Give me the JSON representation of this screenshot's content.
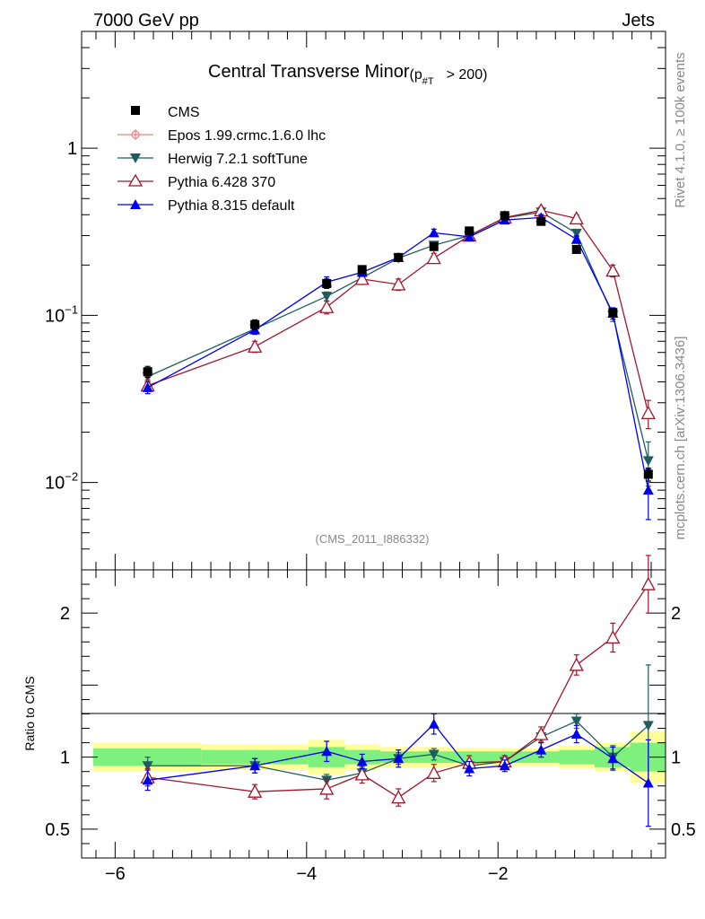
{
  "header": {
    "energy_label": "7000 GeV pp",
    "process_label": "Jets",
    "side_label_top": "Rivet 4.1.0, ≥ 100k events",
    "side_label_bottom": "mcplots.cern.ch [arXiv:1306.3436]",
    "analysis_id": "(CMS_2011_I886332)"
  },
  "chart_data": [
    {
      "type": "line",
      "role": "main",
      "title_main": "Central Transverse Minor",
      "title_sub": "(p",
      "title_sub_index": "#T",
      "title_tail": "> 200)",
      "yscale": "log",
      "xlim": [
        -6.35,
        -0.25
      ],
      "ylim": [
        0.003,
        5.0
      ],
      "ytick_labels": [
        {
          "value": 1,
          "base": "1",
          "exp": ""
        },
        {
          "value": 0.1,
          "base": "10",
          "exp": "−1"
        },
        {
          "value": 0.01,
          "base": "10",
          "exp": "−2"
        }
      ],
      "legend_position": "top-left",
      "series": [
        {
          "name": "CMS",
          "color": "#000000",
          "marker": "square",
          "x": [
            -5.66,
            -4.54,
            -3.79,
            -3.42,
            -3.04,
            -2.67,
            -2.3,
            -1.93,
            -1.55,
            -1.18,
            -0.8,
            -0.43
          ],
          "y": [
            0.046,
            0.088,
            0.155,
            0.188,
            0.222,
            0.258,
            0.32,
            0.395,
            0.365,
            0.248,
            0.104,
            0.0112
          ],
          "err": [
            0.0035,
            0.006,
            0.01,
            0.01,
            0.01,
            0.012,
            0.014,
            0.016,
            0.014,
            0.012,
            0.006,
            0.001
          ]
        },
        {
          "name": "Epos 1.99.crmc.1.6.0 lhc",
          "color": "#f08080",
          "marker": "plus-circle",
          "x": [],
          "y": [],
          "err": []
        },
        {
          "name": "Herwig 7.2.1 softTune",
          "color": "#1f5c5c",
          "marker": "triangle-down",
          "x": [
            -5.66,
            -4.54,
            -3.79,
            -3.42,
            -3.04,
            -2.67,
            -2.3,
            -1.93,
            -1.55,
            -1.18,
            -0.8,
            -0.43
          ],
          "y": [
            0.043,
            0.083,
            0.13,
            0.168,
            0.22,
            0.263,
            0.3,
            0.382,
            0.415,
            0.31,
            0.1,
            0.0135
          ],
          "err": [
            0.003,
            0.005,
            0.008,
            0.009,
            0.01,
            0.012,
            0.013,
            0.015,
            0.016,
            0.014,
            0.008,
            0.004
          ]
        },
        {
          "name": "Pythia 6.428 370",
          "color": "#a0162b",
          "marker": "triangle-open",
          "x": [
            -5.66,
            -4.54,
            -3.79,
            -3.42,
            -3.04,
            -2.67,
            -2.3,
            -1.93,
            -1.55,
            -1.18,
            -0.8,
            -0.43
          ],
          "y": [
            0.038,
            0.065,
            0.112,
            0.165,
            0.153,
            0.22,
            0.3,
            0.385,
            0.425,
            0.38,
            0.185,
            0.026
          ],
          "err": [
            0.003,
            0.005,
            0.01,
            0.012,
            0.012,
            0.015,
            0.016,
            0.018,
            0.02,
            0.018,
            0.015,
            0.005
          ]
        },
        {
          "name": "Pythia 8.315 default",
          "color": "#0000ee",
          "marker": "triangle-up",
          "x": [
            -5.66,
            -4.54,
            -3.79,
            -3.42,
            -3.04,
            -2.67,
            -2.3,
            -1.93,
            -1.55,
            -1.18,
            -0.8,
            -0.43
          ],
          "y": [
            0.037,
            0.082,
            0.158,
            0.181,
            0.222,
            0.312,
            0.295,
            0.372,
            0.385,
            0.285,
            0.103,
            0.009
          ],
          "err": [
            0.003,
            0.005,
            0.012,
            0.01,
            0.012,
            0.016,
            0.014,
            0.016,
            0.016,
            0.014,
            0.008,
            0.003
          ]
        }
      ]
    },
    {
      "type": "line",
      "role": "ratio",
      "ylabel": "Ratio to CMS",
      "xlim": [
        -6.35,
        -0.25
      ],
      "ylim": [
        0.3,
        2.3
      ],
      "ytick_labels": [
        {
          "value": 2,
          "label": "2"
        },
        {
          "value": 1,
          "label": "1"
        },
        {
          "value": 0.5,
          "label": "0.5"
        }
      ],
      "xtick_labels": [
        {
          "value": -6,
          "label": "−6"
        },
        {
          "value": -4,
          "label": "−4"
        },
        {
          "value": -2,
          "label": "−2"
        }
      ],
      "bands": {
        "bin_edges": [
          -6.23,
          -5.1,
          -3.98,
          -3.6,
          -3.23,
          -2.85,
          -2.48,
          -2.11,
          -1.74,
          -1.36,
          -0.99,
          -0.62,
          -0.25
        ],
        "inner_lo": [
          0.94,
          0.95,
          0.93,
          0.95,
          0.96,
          0.96,
          0.96,
          0.96,
          0.96,
          0.95,
          0.93,
          0.9
        ],
        "inner_hi": [
          1.06,
          1.05,
          1.07,
          1.05,
          1.04,
          1.04,
          1.04,
          1.04,
          1.04,
          1.05,
          1.07,
          1.1
        ],
        "outer_lo": [
          0.9,
          0.91,
          0.88,
          0.91,
          0.93,
          0.93,
          0.94,
          0.94,
          0.94,
          0.92,
          0.9,
          0.82
        ],
        "outer_hi": [
          1.1,
          1.09,
          1.12,
          1.09,
          1.07,
          1.07,
          1.06,
          1.06,
          1.06,
          1.08,
          1.1,
          1.18
        ],
        "inner_color": "#7ef07e",
        "outer_color": "#ffff99"
      },
      "series": [
        {
          "name": "Herwig 7.2.1 softTune",
          "color": "#1f5c5c",
          "marker": "triangle-down",
          "x": [
            -5.66,
            -4.54,
            -3.79,
            -3.42,
            -3.04,
            -2.67,
            -2.3,
            -1.93,
            -1.55,
            -1.18,
            -0.8,
            -0.43
          ],
          "y": [
            0.94,
            0.94,
            0.84,
            0.89,
            0.99,
            1.02,
            0.94,
            0.97,
            1.14,
            1.25,
            1.0,
            1.22
          ],
          "err": [
            0.06,
            0.05,
            0.04,
            0.04,
            0.04,
            0.04,
            0.04,
            0.04,
            0.04,
            0.05,
            0.08,
            0.42
          ]
        },
        {
          "name": "Pythia 6.428 370",
          "color": "#a0162b",
          "marker": "triangle-open",
          "x": [
            -5.66,
            -4.54,
            -3.79,
            -3.42,
            -3.04,
            -2.67,
            -2.3,
            -1.93,
            -1.55,
            -1.18,
            -0.8,
            -0.43
          ],
          "y": [
            0.86,
            0.76,
            0.78,
            0.88,
            0.72,
            0.89,
            0.96,
            0.97,
            1.16,
            1.64,
            1.83,
            2.2
          ],
          "err": [
            0.06,
            0.05,
            0.07,
            0.06,
            0.06,
            0.06,
            0.05,
            0.04,
            0.05,
            0.07,
            0.1,
            0.2
          ]
        },
        {
          "name": "Pythia 8.315 default",
          "color": "#0000ee",
          "marker": "triangle-up",
          "x": [
            -5.66,
            -4.54,
            -3.79,
            -3.42,
            -3.04,
            -2.67,
            -2.3,
            -1.93,
            -1.55,
            -1.18,
            -0.8,
            -0.43
          ],
          "y": [
            0.84,
            0.94,
            1.04,
            0.97,
            0.99,
            1.23,
            0.92,
            0.94,
            1.05,
            1.16,
            0.99,
            0.82
          ],
          "err": [
            0.07,
            0.05,
            0.07,
            0.05,
            0.06,
            0.07,
            0.05,
            0.04,
            0.05,
            0.06,
            0.08,
            0.3
          ]
        }
      ]
    }
  ]
}
